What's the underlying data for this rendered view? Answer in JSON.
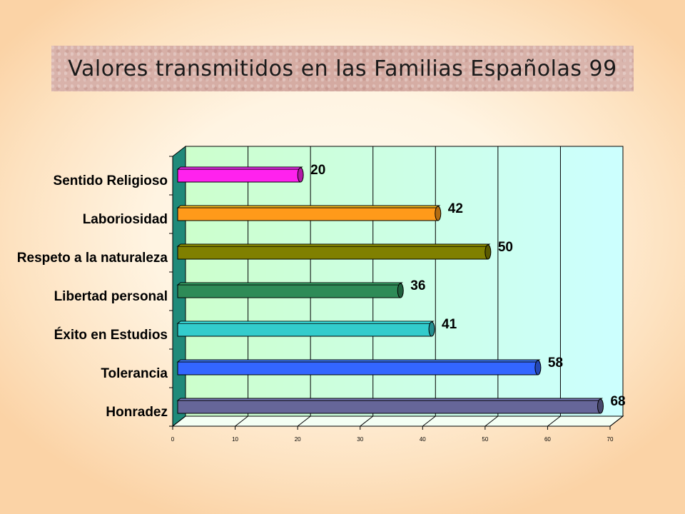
{
  "title": "Valores transmitidos en las Familias Españolas 99",
  "colors": {
    "background": "#fbd3a6",
    "wall_start": "#ccffcc",
    "wall_end": "#ccffff",
    "side_wall": "#1f8a7a"
  },
  "chart_data": {
    "type": "bar",
    "orientation": "horizontal",
    "title": "Valores transmitidos en las Familias Españolas 99",
    "categories": [
      "Sentido Religioso",
      "Laboriosidad",
      "Respeto a la naturaleza",
      "Libertad personal",
      "Éxito en Estudios",
      "Tolerancia",
      "Honradez"
    ],
    "values": [
      20,
      42,
      50,
      36,
      41,
      58,
      68
    ],
    "bar_colors": [
      "#ff22ee",
      "#ff9a1a",
      "#808000",
      "#2e8b57",
      "#33cccc",
      "#3366ff",
      "#666699"
    ],
    "xlim": [
      0,
      70
    ],
    "xticks": [
      "0",
      "10",
      "20",
      "30",
      "40",
      "50",
      "60",
      "70"
    ],
    "grid": true,
    "three_d": true
  }
}
